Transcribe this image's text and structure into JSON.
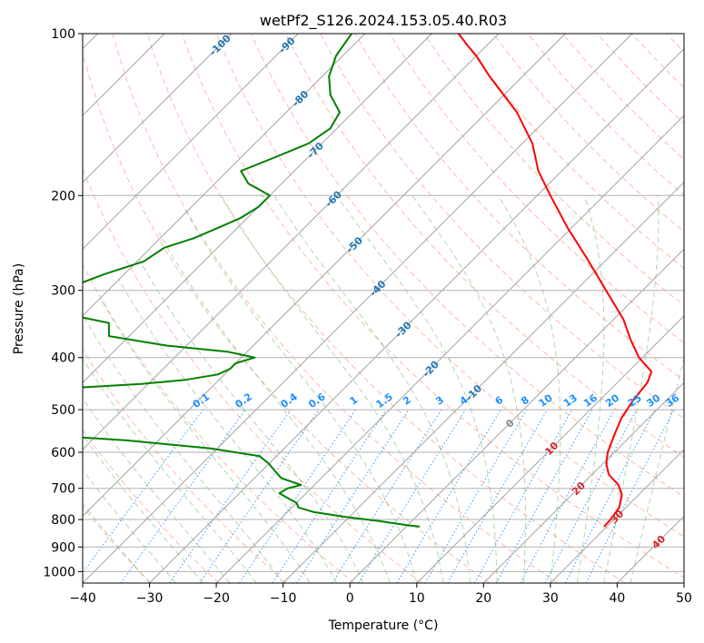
{
  "chart_data": {
    "type": "line",
    "title": "wetPf2_S126.2024.153.05.40.R03",
    "xlabel": "Temperature (°C)",
    "ylabel": "Pressure (hPa)",
    "xlim": [
      -40,
      50
    ],
    "ylim": [
      1050,
      100
    ],
    "y_scale": "log",
    "grid": true,
    "x_ticks": [
      -40,
      -30,
      -20,
      -10,
      0,
      10,
      20,
      30,
      40,
      50
    ],
    "y_ticks": [
      100,
      200,
      300,
      400,
      500,
      600,
      700,
      800,
      900,
      1000
    ],
    "skew_angle_deg": 45,
    "colors": {
      "temperature": "#ff0000",
      "dewpoint": "#008000",
      "isotherm": "#888888",
      "dry_adiabat": "#ff8060",
      "moist_adiabat": "#60b060",
      "mixing_ratio": "#1e90ff",
      "isotherm_label": "#1f77b4",
      "warm_label": "#d62728",
      "zero_label": "#888888"
    },
    "series": [
      {
        "name": "temperature",
        "pressure": [
          825,
          800,
          760,
          720,
          690,
          660,
          630,
          600,
          560,
          520,
          480,
          445,
          425,
          400,
          370,
          340,
          300,
          260,
          230,
          200,
          180,
          160,
          140,
          120,
          110,
          105,
          100
        ],
        "temperature": [
          29.6,
          29.5,
          29.0,
          27.5,
          25.5,
          22.5,
          20.5,
          19.0,
          17.5,
          16.0,
          15.0,
          14.5,
          13.5,
          9.5,
          5.5,
          1.5,
          -5.5,
          -13.5,
          -20.5,
          -28.0,
          -33.5,
          -38.5,
          -45.5,
          -55.0,
          -60.0,
          -63.0,
          -66.0
        ]
      },
      {
        "name": "dewpoint",
        "pressure": [
          825,
          820,
          805,
          790,
          775,
          760,
          745,
          730,
          715,
          700,
          690,
          670,
          650,
          630,
          610,
          590,
          570,
          555,
          545,
          540,
          530,
          515,
          505,
          497,
          490,
          480,
          470,
          462,
          455,
          448,
          440,
          430,
          420,
          410,
          400,
          390,
          380,
          365,
          355,
          345,
          335,
          325,
          310,
          300,
          290,
          280,
          265,
          250,
          240,
          230,
          220,
          210,
          200,
          190,
          180,
          170,
          160,
          150,
          140,
          130,
          120,
          110,
          100
        ],
        "temperature": [
          2.0,
          0.0,
          -5.0,
          -11.0,
          -16.0,
          -19.0,
          -20.0,
          -22.0,
          -24.0,
          -23.5,
          -22.0,
          -26.0,
          -28.0,
          -30.0,
          -32.5,
          -41.0,
          -55.0,
          -70.0,
          -79.0,
          -84.0,
          -84.0,
          -73.0,
          -66.0,
          -70.0,
          -77.0,
          -82.0,
          -86.0,
          -82.0,
          -70.0,
          -61.0,
          -55.0,
          -51.0,
          -50.0,
          -50.0,
          -48.0,
          -53.0,
          -63.0,
          -73.0,
          -74.0,
          -75.0,
          -81.0,
          -86.0,
          -87.0,
          -87.0,
          -85.0,
          -83.0,
          -79.0,
          -78.0,
          -75.0,
          -73.0,
          -71.0,
          -70.0,
          -70.0,
          -75.0,
          -78.0,
          -75.0,
          -72.0,
          -71.0,
          -72.0,
          -76.0,
          -79.0,
          -81.0,
          -82.0
        ]
      }
    ],
    "isotherm_labels": [
      "-100",
      "-90",
      "-80",
      "-70",
      "-60",
      "-50",
      "-40",
      "-30",
      "-20",
      "-10",
      "0",
      "10",
      "20",
      "30",
      "40"
    ],
    "mixing_ratio_labels": [
      "0.1",
      "0.2",
      "0.4",
      "0.6",
      "1",
      "1.5",
      "2",
      "3",
      "4",
      "6",
      "8",
      "10",
      "13",
      "16",
      "20",
      "25",
      "30",
      "36"
    ]
  }
}
